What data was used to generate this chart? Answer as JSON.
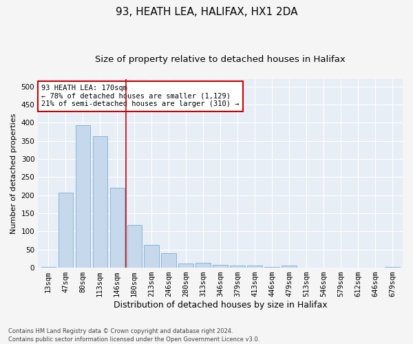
{
  "title": "93, HEATH LEA, HALIFAX, HX1 2DA",
  "subtitle": "Size of property relative to detached houses in Halifax",
  "xlabel": "Distribution of detached houses by size in Halifax",
  "ylabel": "Number of detached properties",
  "categories": [
    "13sqm",
    "47sqm",
    "80sqm",
    "113sqm",
    "146sqm",
    "180sqm",
    "213sqm",
    "246sqm",
    "280sqm",
    "313sqm",
    "346sqm",
    "379sqm",
    "413sqm",
    "446sqm",
    "479sqm",
    "513sqm",
    "546sqm",
    "579sqm",
    "612sqm",
    "646sqm",
    "679sqm"
  ],
  "values": [
    2,
    207,
    393,
    362,
    221,
    118,
    63,
    40,
    12,
    13,
    7,
    5,
    5,
    2,
    6,
    1,
    1,
    0,
    0,
    0,
    2
  ],
  "bar_color": "#c5d8ec",
  "bar_edge_color": "#7aafd4",
  "vline_x": 4.5,
  "vline_color": "#cc0000",
  "annotation_text": "93 HEATH LEA: 170sqm\n← 78% of detached houses are smaller (1,129)\n21% of semi-detached houses are larger (310) →",
  "annotation_box_color": "#ffffff",
  "annotation_box_edge": "#cc0000",
  "ylim": [
    0,
    520
  ],
  "yticks": [
    0,
    50,
    100,
    150,
    200,
    250,
    300,
    350,
    400,
    450,
    500
  ],
  "background_color": "#e8eef6",
  "grid_color": "#ffffff",
  "fig_background": "#f5f5f5",
  "footnote": "Contains HM Land Registry data © Crown copyright and database right 2024.\nContains public sector information licensed under the Open Government Licence v3.0.",
  "title_fontsize": 11,
  "subtitle_fontsize": 9.5,
  "xlabel_fontsize": 9,
  "ylabel_fontsize": 8,
  "tick_fontsize": 7.5,
  "annot_fontsize": 7.5,
  "footnote_fontsize": 6
}
